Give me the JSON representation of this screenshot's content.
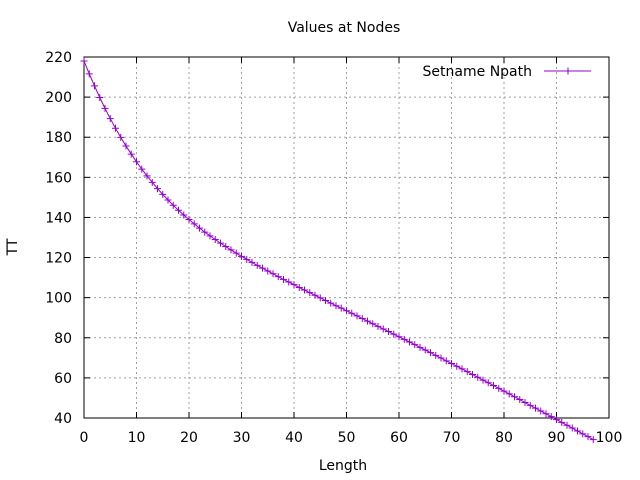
{
  "chart_data": {
    "type": "line",
    "title": "Values at Nodes",
    "xlabel": "Length",
    "ylabel": "TT",
    "xlim": [
      0,
      100
    ],
    "ylim": [
      40,
      220
    ],
    "xticks": [
      "0",
      "10",
      "20",
      "30",
      "40",
      "50",
      "60",
      "70",
      "80",
      "90",
      "100"
    ],
    "yticks": [
      "40",
      "60",
      "80",
      "100",
      "120",
      "140",
      "160",
      "180",
      "200",
      "220"
    ],
    "grid": true,
    "legend_position": "top-right",
    "marker": "plus",
    "series": [
      {
        "name": "Setname Npath",
        "color": "#9400d3",
        "x": [
          0,
          1,
          2,
          3,
          4,
          5,
          6,
          7,
          8,
          9,
          10,
          11,
          12,
          13,
          14,
          15,
          16,
          17,
          18,
          19,
          20,
          21,
          22,
          23,
          24,
          25,
          26,
          27,
          28,
          29,
          30,
          31,
          32,
          33,
          34,
          35,
          36,
          37,
          38,
          39,
          40,
          41,
          42,
          43,
          44,
          45,
          46,
          47,
          48,
          49,
          50,
          51,
          52,
          53,
          54,
          55,
          56,
          57,
          58,
          59,
          60,
          61,
          62,
          63,
          64,
          65,
          66,
          67,
          68,
          69,
          70,
          71,
          72,
          73,
          74,
          75,
          76,
          77,
          78,
          79,
          80,
          81,
          82,
          83,
          84,
          85,
          86,
          87,
          88,
          89,
          90,
          91,
          92,
          93,
          94,
          95,
          96,
          97
        ],
        "y": [
          218.0,
          211.6,
          205.6,
          199.8,
          194.4,
          189.3,
          184.5,
          179.9,
          175.6,
          171.6,
          167.8,
          164.1,
          160.7,
          157.5,
          154.4,
          151.5,
          148.7,
          146.1,
          143.6,
          141.2,
          139.0,
          136.8,
          134.7,
          132.7,
          130.8,
          129.0,
          127.2,
          125.5,
          123.8,
          122.2,
          120.6,
          119.1,
          117.6,
          116.1,
          114.7,
          113.3,
          111.9,
          110.5,
          109.1,
          107.8,
          106.5,
          105.1,
          103.8,
          102.5,
          101.2,
          99.9,
          98.6,
          97.3,
          96.0,
          94.8,
          93.5,
          92.2,
          90.9,
          89.6,
          88.3,
          87.0,
          85.7,
          84.4,
          83.1,
          81.8,
          80.5,
          79.2,
          77.9,
          76.6,
          75.2,
          73.9,
          72.6,
          71.2,
          69.9,
          68.5,
          67.2,
          65.8,
          64.5,
          63.1,
          61.7,
          60.3,
          58.9,
          57.6,
          56.2,
          54.8,
          53.4,
          52.0,
          50.6,
          49.2,
          47.7,
          46.3,
          44.9,
          43.5,
          42.1,
          40.7,
          39.2,
          37.8,
          36.4,
          35.0,
          33.5,
          32.1,
          30.7,
          29.2
        ]
      }
    ]
  }
}
